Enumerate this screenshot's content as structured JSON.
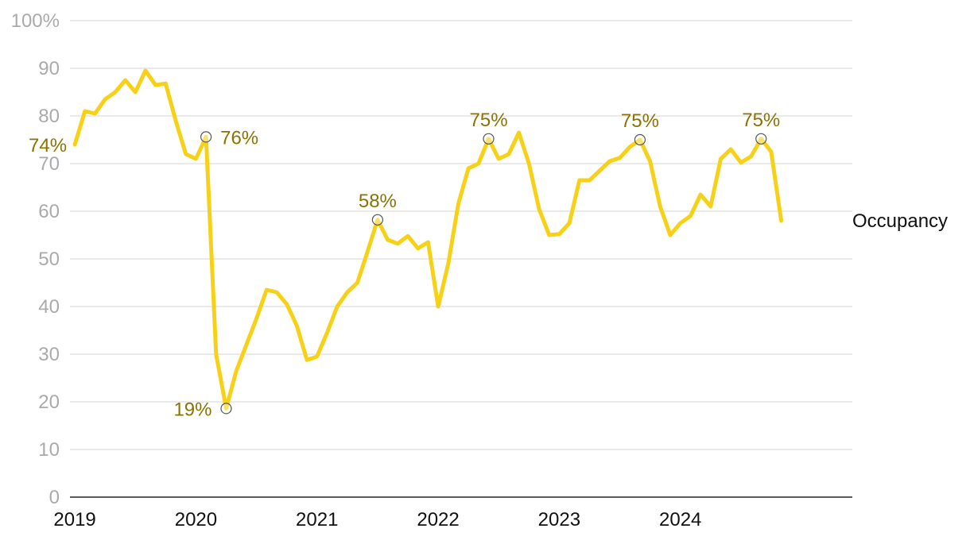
{
  "chart_data": {
    "type": "line",
    "title": "",
    "xlabel": "",
    "ylabel": "",
    "ylim": [
      0,
      100
    ],
    "xlim": [
      2018.96,
      2025.42
    ],
    "y_ticks": [
      {
        "value": 0,
        "label": "0"
      },
      {
        "value": 10,
        "label": "10"
      },
      {
        "value": 20,
        "label": "20"
      },
      {
        "value": 30,
        "label": "30"
      },
      {
        "value": 40,
        "label": "40"
      },
      {
        "value": 50,
        "label": "50"
      },
      {
        "value": 60,
        "label": "60"
      },
      {
        "value": 70,
        "label": "70"
      },
      {
        "value": 80,
        "label": "80"
      },
      {
        "value": 90,
        "label": "90"
      },
      {
        "value": 100,
        "label": "100%"
      }
    ],
    "x_ticks": [
      {
        "value": 2019.0,
        "label": "2019"
      },
      {
        "value": 2020.0,
        "label": "2020"
      },
      {
        "value": 2021.0,
        "label": "2021"
      },
      {
        "value": 2022.0,
        "label": "2022"
      },
      {
        "value": 2023.0,
        "label": "2023"
      },
      {
        "value": 2024.0,
        "label": "2024"
      }
    ],
    "grid": true,
    "color": "#f7d118",
    "series": [
      {
        "name": "Occupancy",
        "values": [
          74,
          81,
          80.5,
          83.5,
          85,
          87.5,
          85,
          89.5,
          86.5,
          86.8,
          79,
          72,
          71,
          75.6,
          30,
          18.6,
          26.5,
          32,
          37.5,
          43.5,
          43,
          40.5,
          36,
          28.8,
          29.5,
          34.5,
          40,
          43,
          45,
          51.5,
          58.2,
          54,
          53.2,
          54.8,
          52.2,
          53.5,
          40,
          49,
          61.5,
          69,
          70,
          75.2,
          71,
          72,
          76.5,
          70,
          60.5,
          55,
          55.2,
          57.5,
          66.5,
          66.5,
          68.5,
          70.5,
          71.2,
          73.5,
          75,
          70.5,
          61,
          55,
          57.5,
          59,
          63.5,
          61,
          71,
          73,
          70.2,
          71.5,
          75.2,
          72.5,
          58
        ]
      }
    ],
    "annotations": [
      {
        "index": 0,
        "label": "74%",
        "marker": false,
        "position": "left"
      },
      {
        "index": 13,
        "label": "76%",
        "marker": true,
        "position": "right"
      },
      {
        "index": 15,
        "label": "19%",
        "marker": true,
        "position": "left"
      },
      {
        "index": 30,
        "label": "58%",
        "marker": true,
        "position": "top"
      },
      {
        "index": 41,
        "label": "75%",
        "marker": true,
        "position": "top"
      },
      {
        "index": 56,
        "label": "75%",
        "marker": true,
        "position": "top"
      },
      {
        "index": 68,
        "label": "75%",
        "marker": true,
        "position": "top"
      }
    ]
  }
}
